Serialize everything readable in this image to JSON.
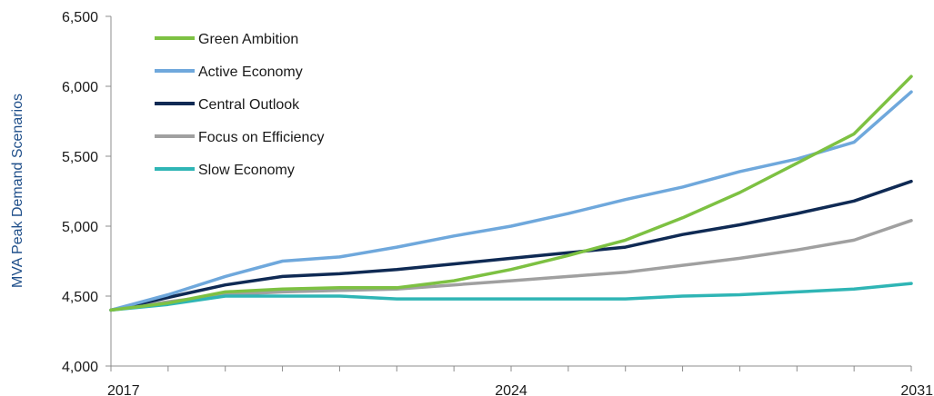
{
  "chart_data": {
    "type": "line",
    "title": "",
    "xlabel": "",
    "ylabel": "MVA Peak Demand Scenarios",
    "ylim": [
      4000,
      6500
    ],
    "yticks": [
      4000,
      4500,
      5000,
      5500,
      6000,
      6500
    ],
    "ytick_labels": [
      "4,000",
      "4,500",
      "5,000",
      "5,500",
      "6,000",
      "6,500"
    ],
    "xlim": [
      2017,
      2031
    ],
    "xtick_labels": [
      "2017",
      "2024",
      "2031"
    ],
    "x": [
      2017,
      2018,
      2019,
      2020,
      2021,
      2022,
      2023,
      2024,
      2025,
      2026,
      2027,
      2028,
      2029,
      2030,
      2031
    ],
    "grid": false,
    "legend_position": "top-left",
    "series": [
      {
        "name": "Green Ambition",
        "color": "#7dc142",
        "values": [
          4400,
          4450,
          4530,
          4550,
          4560,
          4560,
          4610,
          4690,
          4790,
          4900,
          5060,
          5240,
          5450,
          5660,
          6070
        ]
      },
      {
        "name": "Active Economy",
        "color": "#6fa8dc",
        "values": [
          4400,
          4510,
          4640,
          4750,
          4780,
          4850,
          4930,
          5000,
          5090,
          5190,
          5280,
          5390,
          5480,
          5600,
          5960
        ]
      },
      {
        "name": "Central Outlook",
        "color": "#0f2a54",
        "values": [
          4400,
          4490,
          4580,
          4640,
          4660,
          4690,
          4730,
          4770,
          4810,
          4850,
          4940,
          5010,
          5090,
          5180,
          5320
        ]
      },
      {
        "name": "Focus on Efficiency",
        "color": "#a0a0a0",
        "values": [
          4400,
          4460,
          4510,
          4530,
          4540,
          4550,
          4580,
          4610,
          4640,
          4670,
          4720,
          4770,
          4830,
          4900,
          5040
        ]
      },
      {
        "name": "Slow Economy",
        "color": "#2fb5b5",
        "values": [
          4400,
          4440,
          4500,
          4500,
          4500,
          4480,
          4480,
          4480,
          4480,
          4480,
          4500,
          4510,
          4530,
          4550,
          4590
        ]
      }
    ]
  }
}
